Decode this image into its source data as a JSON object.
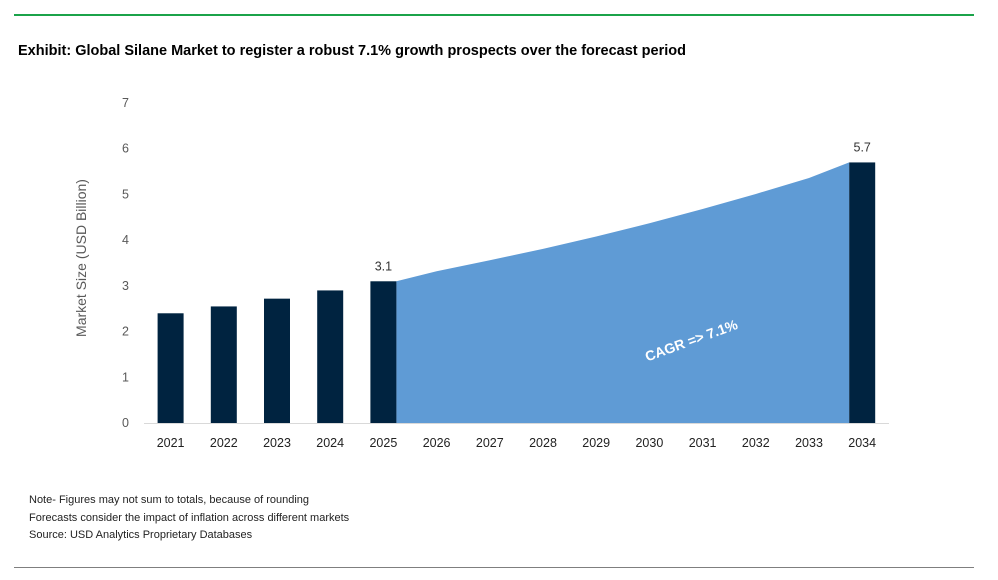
{
  "title": "Exhibit: Global Silane Market to register a robust 7.1% growth prospects over the forecast period",
  "notes": [
    "Note- Figures may not sum to totals, because of rounding",
    "Forecasts consider the impact of inflation across different markets",
    "Source: USD Analytics Proprietary Databases"
  ],
  "colors": {
    "bar": "#002340",
    "area": "#5f9bd5",
    "accent_rule": "#1ba34a",
    "axis_text": "#595959"
  },
  "chart_data": {
    "type": "bar",
    "title": "Exhibit: Global Silane Market to register a robust 7.1% growth prospects over the forecast period",
    "xlabel": "",
    "ylabel": "Market Size (USD Billion)",
    "ylim": [
      0,
      7
    ],
    "yticks": [
      0,
      1,
      2,
      3,
      4,
      5,
      6,
      7
    ],
    "grid": false,
    "legend": "none",
    "categories": [
      "2021",
      "2022",
      "2023",
      "2024",
      "2025",
      "2026",
      "2027",
      "2028",
      "2029",
      "2030",
      "2031",
      "2032",
      "2033",
      "2034"
    ],
    "bars": [
      {
        "x": "2021",
        "value": 2.4
      },
      {
        "x": "2022",
        "value": 2.55
      },
      {
        "x": "2023",
        "value": 2.72
      },
      {
        "x": "2024",
        "value": 2.9
      },
      {
        "x": "2025",
        "value": 3.1,
        "label": "3.1"
      },
      {
        "x": "2034",
        "value": 5.7,
        "label": "5.7"
      }
    ],
    "forecast_area": {
      "x": [
        "2025",
        "2026",
        "2027",
        "2028",
        "2029",
        "2030",
        "2031",
        "2032",
        "2033",
        "2034"
      ],
      "values": [
        3.1,
        3.32,
        3.56,
        3.81,
        4.08,
        4.37,
        4.68,
        5.01,
        5.36,
        5.7
      ]
    },
    "annotation": "CAGR => 7.1%"
  }
}
